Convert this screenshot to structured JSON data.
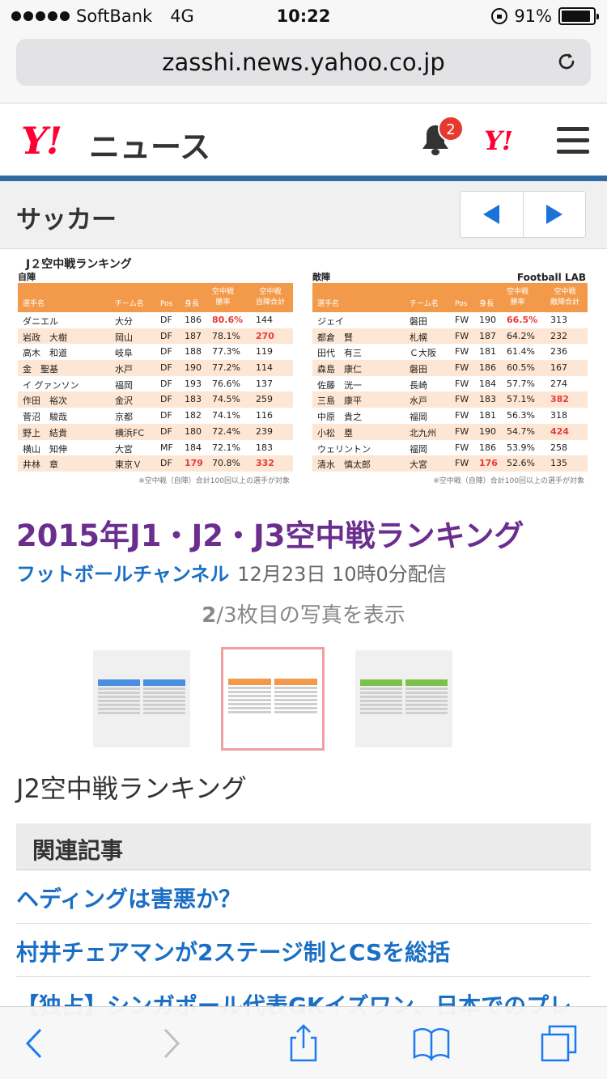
{
  "status_bar": {
    "carrier": "SoftBank",
    "network": "4G",
    "time": "10:22",
    "battery": "91%",
    "battery_level": 0.91
  },
  "browser": {
    "url": "zasshi.news.yahoo.co.jp"
  },
  "header": {
    "logo": "Y!",
    "logo_text": "ニュース",
    "notification_count": "2",
    "yahoo_small": "Y!"
  },
  "category": {
    "title": "サッカー"
  },
  "photo": {
    "left": {
      "title": "J２空中戦ランキング",
      "subtitle": "自陣",
      "headers": [
        "選手名",
        "チーム名",
        "Pos",
        "身長",
        "空中戦\n勝率",
        "空中戦\n自陣合計"
      ],
      "rows": [
        [
          "ダニエル",
          "大分",
          "DF",
          "186",
          "80.6%",
          "144"
        ],
        [
          "岩政　大樹",
          "岡山",
          "DF",
          "187",
          "78.1%",
          "270"
        ],
        [
          "高木　和道",
          "岐阜",
          "DF",
          "188",
          "77.3%",
          "119"
        ],
        [
          "金　聖基",
          "水戸",
          "DF",
          "190",
          "77.2%",
          "114"
        ],
        [
          "イ グァンソン",
          "福岡",
          "DF",
          "193",
          "76.6%",
          "137"
        ],
        [
          "作田　裕次",
          "金沢",
          "DF",
          "183",
          "74.5%",
          "259"
        ],
        [
          "菅沼　駿哉",
          "京都",
          "DF",
          "182",
          "74.1%",
          "116"
        ],
        [
          "野上　結貴",
          "横浜FC",
          "DF",
          "180",
          "72.4%",
          "239"
        ],
        [
          "横山　知伸",
          "大宮",
          "MF",
          "184",
          "72.1%",
          "183"
        ],
        [
          "井林　章",
          "東京Ｖ",
          "DF",
          "179",
          "70.8%",
          "332"
        ]
      ],
      "note": "※空中戦（自陣）合計100回以上の選手が対象"
    },
    "right": {
      "subtitle": "敵陣",
      "source": "Football LAB",
      "headers": [
        "選手名",
        "チーム名",
        "Pos",
        "身長",
        "空中戦\n勝率",
        "空中戦\n敵陣合計"
      ],
      "rows": [
        [
          "ジェイ",
          "磐田",
          "FW",
          "190",
          "66.5%",
          "313"
        ],
        [
          "都倉　賢",
          "札幌",
          "FW",
          "187",
          "64.2%",
          "232"
        ],
        [
          "田代　有三",
          "Ｃ大阪",
          "FW",
          "181",
          "61.4%",
          "236"
        ],
        [
          "森島　康仁",
          "磐田",
          "FW",
          "186",
          "60.5%",
          "167"
        ],
        [
          "佐藤　洸一",
          "長崎",
          "FW",
          "184",
          "57.7%",
          "274"
        ],
        [
          "三島　康平",
          "水戸",
          "FW",
          "183",
          "57.1%",
          "382"
        ],
        [
          "中原　貴之",
          "福岡",
          "FW",
          "181",
          "56.3%",
          "318"
        ],
        [
          "小松　塁",
          "北九州",
          "FW",
          "190",
          "54.7%",
          "424"
        ],
        [
          "ウェリントン",
          "福岡",
          "FW",
          "186",
          "53.9%",
          "258"
        ],
        [
          "清水　慎太郎",
          "大宮",
          "FW",
          "176",
          "52.6%",
          "135"
        ]
      ],
      "note": "※空中戦（自陣）合計100回以上の選手が対象"
    }
  },
  "article": {
    "title": "2015年J1・J2・J3空中戦ランキング",
    "source": "フットボールチャンネル",
    "date": "12月23日 10時0分配信",
    "photo_index": "2",
    "photo_count_rest": "/3枚目の写真を表示",
    "caption": "J2空中戦ランキング"
  },
  "thumbnails": [
    {
      "color": "#4a90e2",
      "selected": false
    },
    {
      "color": "#f39a4a",
      "selected": true
    },
    {
      "color": "#7cc24a",
      "selected": false
    }
  ],
  "related": {
    "heading": "関連記事",
    "links": [
      "ヘディングは害悪か？",
      "村井チェアマンが2ステージ制とCSを総括",
      "【独占】シンガポール代表GKイズワン、日本でのプレ"
    ]
  },
  "colors": {
    "yahoo_red": "#ff0033",
    "accent_blue": "#2f6aa3",
    "title_purple": "#6b2e8f",
    "link_blue": "#1a6fc4",
    "table_orange": "#f39a4a",
    "highlight_red": "#e8393a"
  },
  "toolbar": {
    "icons": [
      "back-icon",
      "forward-icon",
      "share-icon",
      "bookmarks-icon",
      "tabs-icon"
    ]
  }
}
